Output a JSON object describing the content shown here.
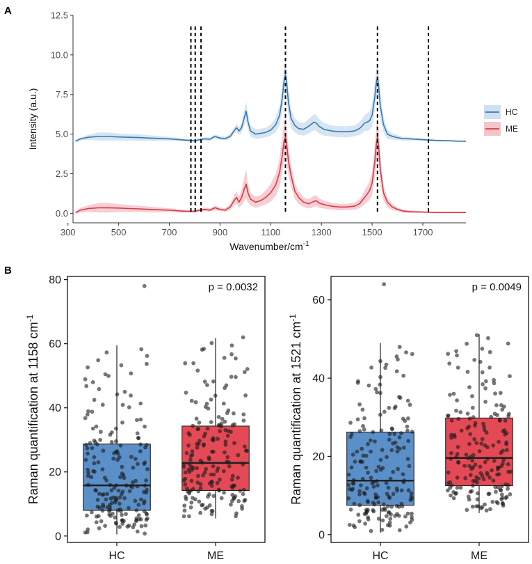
{
  "panel_a_label": "A",
  "panel_b_label": "B",
  "chart_data": [
    {
      "type": "line",
      "panel": "A",
      "ylabel": "Intensity (a.u.)",
      "xlabel_main": "Wavenumber/cm",
      "xlabel_sup": "-1",
      "xlim": [
        320,
        1870
      ],
      "ylim": [
        -0.6,
        12.5
      ],
      "xticks": [
        300,
        500,
        700,
        900,
        1100,
        1300,
        1500,
        1700
      ],
      "xtick_labels": [
        "300",
        "500",
        "700",
        "900",
        "1100",
        "1300",
        "1500",
        "1700"
      ],
      "yticks": [
        0,
        2.5,
        5,
        7.5,
        10,
        12.5
      ],
      "ytick_labels": [
        "0.0",
        "2.5",
        "5.0",
        "7.5",
        "10.0",
        "12.5"
      ],
      "vlines": [
        785,
        802,
        825,
        1158,
        1521,
        1722
      ],
      "legend": [
        {
          "name": "HC",
          "color": "#3a78b0",
          "band": "#cfe0ef"
        },
        {
          "name": "ME",
          "color": "#d43d46",
          "band": "#f4c6cb"
        }
      ],
      "series": [
        {
          "name": "HC",
          "x": [
            330,
            350,
            380,
            420,
            460,
            500,
            540,
            580,
            620,
            660,
            700,
            740,
            780,
            800,
            820,
            840,
            860,
            880,
            900,
            920,
            940,
            955,
            965,
            975,
            985,
            995,
            1003,
            1010,
            1020,
            1040,
            1060,
            1080,
            1100,
            1120,
            1135,
            1145,
            1152,
            1158,
            1163,
            1170,
            1180,
            1195,
            1210,
            1230,
            1250,
            1270,
            1280,
            1290,
            1310,
            1340,
            1370,
            1400,
            1430,
            1450,
            1460,
            1470,
            1480,
            1490,
            1500,
            1510,
            1516,
            1521,
            1526,
            1532,
            1545,
            1560,
            1580,
            1600,
            1620,
            1650,
            1700,
            1750,
            1800,
            1850,
            1870
          ],
          "y": [
            4.55,
            4.7,
            4.8,
            4.85,
            4.85,
            4.82,
            4.8,
            4.78,
            4.75,
            4.73,
            4.7,
            4.65,
            4.6,
            4.58,
            4.65,
            4.7,
            4.68,
            4.85,
            4.75,
            4.72,
            4.85,
            5.2,
            5.4,
            5.2,
            5.4,
            6.0,
            6.45,
            5.8,
            5.2,
            5.0,
            5.05,
            5.1,
            5.25,
            5.6,
            6.2,
            7.2,
            8.3,
            8.75,
            8.2,
            7.0,
            6.0,
            5.55,
            5.35,
            5.3,
            5.5,
            5.75,
            5.7,
            5.5,
            5.3,
            5.2,
            5.15,
            5.15,
            5.2,
            5.35,
            5.5,
            5.7,
            5.75,
            5.85,
            6.2,
            7.3,
            8.2,
            8.6,
            8.0,
            6.8,
            5.6,
            5.0,
            4.85,
            4.78,
            4.72,
            4.7,
            4.65,
            4.6,
            4.58,
            4.55,
            4.55
          ],
          "sd": [
            0.1,
            0.1,
            0.15,
            0.25,
            0.25,
            0.22,
            0.2,
            0.2,
            0.18,
            0.15,
            0.12,
            0.1,
            0.08,
            0.08,
            0.1,
            0.1,
            0.1,
            0.12,
            0.12,
            0.12,
            0.15,
            0.2,
            0.25,
            0.25,
            0.3,
            0.45,
            0.6,
            0.5,
            0.35,
            0.3,
            0.3,
            0.3,
            0.35,
            0.45,
            0.6,
            0.8,
            0.95,
            1.0,
            0.95,
            0.8,
            0.6,
            0.45,
            0.4,
            0.4,
            0.45,
            0.5,
            0.5,
            0.45,
            0.4,
            0.35,
            0.35,
            0.35,
            0.35,
            0.4,
            0.45,
            0.5,
            0.55,
            0.6,
            0.7,
            0.85,
            0.95,
            1.0,
            0.95,
            0.8,
            0.5,
            0.3,
            0.2,
            0.15,
            0.12,
            0.1,
            0.08,
            0.06,
            0.05,
            0.05,
            0.05
          ]
        },
        {
          "name": "ME",
          "x": [
            330,
            350,
            380,
            420,
            460,
            500,
            540,
            580,
            620,
            660,
            700,
            740,
            780,
            800,
            820,
            840,
            860,
            880,
            900,
            920,
            940,
            955,
            965,
            975,
            985,
            995,
            1003,
            1010,
            1020,
            1040,
            1060,
            1080,
            1100,
            1120,
            1135,
            1145,
            1152,
            1158,
            1163,
            1170,
            1180,
            1195,
            1210,
            1230,
            1250,
            1270,
            1280,
            1290,
            1310,
            1340,
            1370,
            1400,
            1430,
            1450,
            1460,
            1470,
            1480,
            1490,
            1500,
            1510,
            1516,
            1521,
            1526,
            1532,
            1545,
            1560,
            1580,
            1600,
            1620,
            1650,
            1700,
            1750,
            1800,
            1850,
            1870
          ],
          "y": [
            0.05,
            0.2,
            0.3,
            0.35,
            0.35,
            0.33,
            0.3,
            0.28,
            0.25,
            0.22,
            0.2,
            0.15,
            0.12,
            0.12,
            0.2,
            0.25,
            0.2,
            0.35,
            0.25,
            0.2,
            0.4,
            0.8,
            1.0,
            0.7,
            1.0,
            1.5,
            1.85,
            1.3,
            0.9,
            0.7,
            0.8,
            1.0,
            1.3,
            1.8,
            2.6,
            3.6,
            4.5,
            4.85,
            4.3,
            3.3,
            2.4,
            1.4,
            1.0,
            0.7,
            0.6,
            0.75,
            0.8,
            0.65,
            0.55,
            0.45,
            0.4,
            0.4,
            0.45,
            0.6,
            0.8,
            1.0,
            1.2,
            1.45,
            1.9,
            3.2,
            4.3,
            4.85,
            4.2,
            2.8,
            1.3,
            0.7,
            0.4,
            0.25,
            0.15,
            0.1,
            0.08,
            0.05,
            0.05,
            0.05,
            0.05
          ],
          "sd": [
            0.1,
            0.15,
            0.2,
            0.3,
            0.3,
            0.25,
            0.22,
            0.2,
            0.18,
            0.15,
            0.12,
            0.1,
            0.08,
            0.08,
            0.1,
            0.12,
            0.1,
            0.15,
            0.12,
            0.1,
            0.2,
            0.3,
            0.4,
            0.35,
            0.5,
            0.75,
            0.9,
            0.6,
            0.4,
            0.35,
            0.35,
            0.45,
            0.55,
            0.7,
            0.9,
            1.1,
            1.2,
            1.2,
            1.1,
            0.9,
            0.7,
            0.5,
            0.4,
            0.3,
            0.3,
            0.35,
            0.35,
            0.3,
            0.25,
            0.22,
            0.2,
            0.2,
            0.22,
            0.28,
            0.35,
            0.45,
            0.5,
            0.6,
            0.75,
            1.0,
            1.15,
            1.2,
            1.1,
            0.9,
            0.5,
            0.3,
            0.2,
            0.12,
            0.1,
            0.08,
            0.06,
            0.05,
            0.05,
            0.05,
            0.05
          ]
        }
      ]
    },
    {
      "type": "box",
      "panel": "B-left",
      "ylabel_main": "Raman quantification at 1158 cm",
      "ylabel_sup": "-1",
      "annotation": "p = 0.0032",
      "ylim": [
        -2,
        81
      ],
      "yticks": [
        0,
        20,
        40,
        60,
        80
      ],
      "ytick_labels": [
        "0",
        "20",
        "40",
        "60",
        "80"
      ],
      "categories": [
        "HC",
        "ME"
      ],
      "colors": [
        "#5b8fc7",
        "#e34a55"
      ],
      "boxes": [
        {
          "name": "HC",
          "whisker_low": 0.5,
          "q1": 8,
          "median": 15.8,
          "q3": 28.7,
          "whisker_high": 59.5
        },
        {
          "name": "ME",
          "whisker_low": 5.5,
          "q1": 14.2,
          "median": 22.8,
          "q3": 34.3,
          "whisker_high": 61.8
        }
      ],
      "point_stats": [
        {
          "group": "HC",
          "n": 190,
          "max": 78,
          "min": 0.5
        },
        {
          "group": "ME",
          "n": 185,
          "max": 62,
          "min": 5.5
        }
      ]
    },
    {
      "type": "box",
      "panel": "B-right",
      "ylabel_main": "Raman quantification at 1521 cm",
      "ylabel_sup": "-1",
      "annotation": "p = 0.0049",
      "ylim": [
        -2,
        66
      ],
      "yticks": [
        0,
        20,
        40,
        60
      ],
      "ytick_labels": [
        "0",
        "20",
        "40",
        "60"
      ],
      "categories": [
        "HC",
        "ME"
      ],
      "colors": [
        "#5b8fc7",
        "#e34a55"
      ],
      "boxes": [
        {
          "name": "HC",
          "whisker_low": 0.5,
          "q1": 7.5,
          "median": 13.8,
          "q3": 26.2,
          "whisker_high": 49
        },
        {
          "name": "ME",
          "whisker_low": 5.5,
          "q1": 12.5,
          "median": 19.6,
          "q3": 29.8,
          "whisker_high": 51.2
        }
      ],
      "point_stats": [
        {
          "group": "HC",
          "n": 190,
          "max": 64,
          "min": 0.5
        },
        {
          "group": "ME",
          "n": 185,
          "max": 51,
          "min": 5.5
        }
      ]
    }
  ]
}
